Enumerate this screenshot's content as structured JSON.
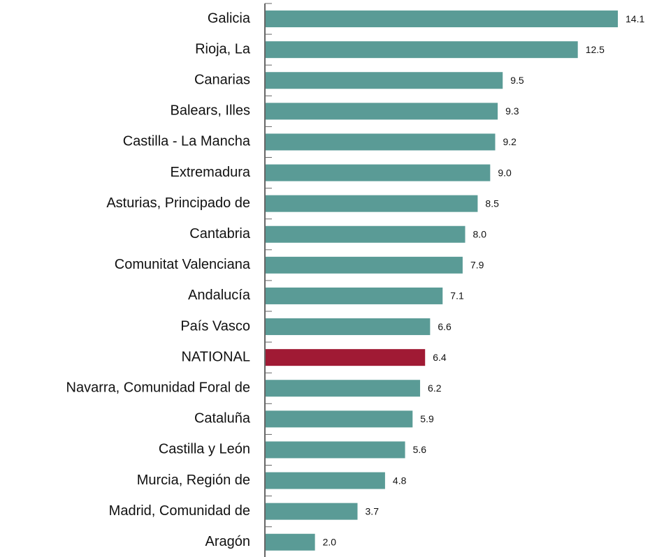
{
  "chart_data": {
    "type": "bar",
    "orientation": "horizontal",
    "categories": [
      "Galicia",
      "Rioja, La",
      "Canarias",
      "Balears, Illes",
      "Castilla - La Mancha",
      "Extremadura",
      "Asturias, Principado de",
      "Cantabria",
      "Comunitat Valenciana",
      "Andalucía",
      "País Vasco",
      "NATIONAL",
      "Navarra, Comunidad Foral de",
      "Cataluña",
      "Castilla y León",
      "Murcia, Región de",
      "Madrid, Comunidad de",
      "Aragón"
    ],
    "values": [
      14.1,
      12.5,
      9.5,
      9.3,
      9.2,
      9.0,
      8.5,
      8.0,
      7.9,
      7.1,
      6.6,
      6.4,
      6.2,
      5.9,
      5.6,
      4.8,
      3.7,
      2.0
    ],
    "value_labels": [
      "14.1",
      "12.5",
      "9.5",
      "9.3",
      "9.2",
      "9.0",
      "8.5",
      "8.0",
      "7.9",
      "7.1",
      "6.6",
      "6.4",
      "6.2",
      "5.9",
      "5.6",
      "4.8",
      "3.7",
      "2.0"
    ],
    "colors": [
      "#5a9b96",
      "#5a9b96",
      "#5a9b96",
      "#5a9b96",
      "#5a9b96",
      "#5a9b96",
      "#5a9b96",
      "#5a9b96",
      "#5a9b96",
      "#5a9b96",
      "#5a9b96",
      "#a01a34",
      "#5a9b96",
      "#5a9b96",
      "#5a9b96",
      "#5a9b96",
      "#5a9b96",
      "#5a9b96"
    ]
  }
}
